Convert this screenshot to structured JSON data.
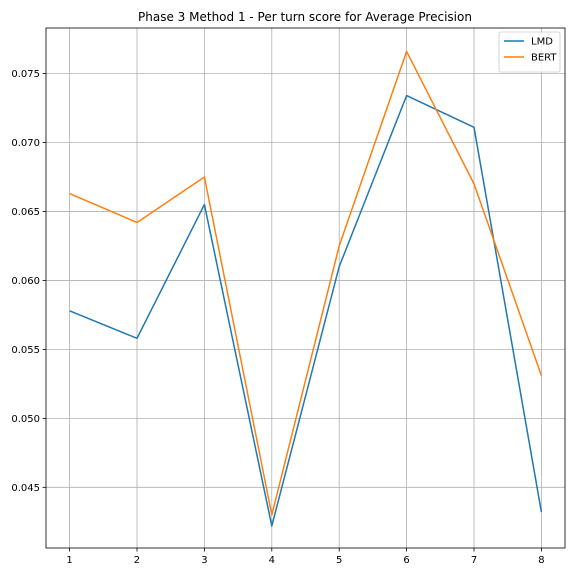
{
  "chart_data": {
    "type": "line",
    "title": "Phase 3 Method 1 - Per turn score for Average Precision",
    "xlabel": "",
    "ylabel": "",
    "x": [
      1,
      2,
      3,
      4,
      5,
      6,
      7,
      8
    ],
    "xticks": [
      "1",
      "2",
      "3",
      "4",
      "5",
      "6",
      "7",
      "8"
    ],
    "xlim": [
      0.65,
      8.35
    ],
    "yticks": [
      "0.045",
      "0.050",
      "0.055",
      "0.060",
      "0.065",
      "0.070",
      "0.075"
    ],
    "ytick_values": [
      0.045,
      0.05,
      0.055,
      0.06,
      0.065,
      0.07,
      0.075
    ],
    "ylim": [
      0.0406,
      0.0783
    ],
    "grid": true,
    "legend_position": "top-right",
    "series": [
      {
        "name": "LMD",
        "color": "#1f77b4",
        "values": [
          0.0578,
          0.0558,
          0.0655,
          0.0422,
          0.061,
          0.0734,
          0.0711,
          0.0432
        ]
      },
      {
        "name": "BERT",
        "color": "#ff7f0e",
        "values": [
          0.0663,
          0.0642,
          0.0675,
          0.043,
          0.0625,
          0.0766,
          0.067,
          0.0531
        ]
      }
    ]
  }
}
